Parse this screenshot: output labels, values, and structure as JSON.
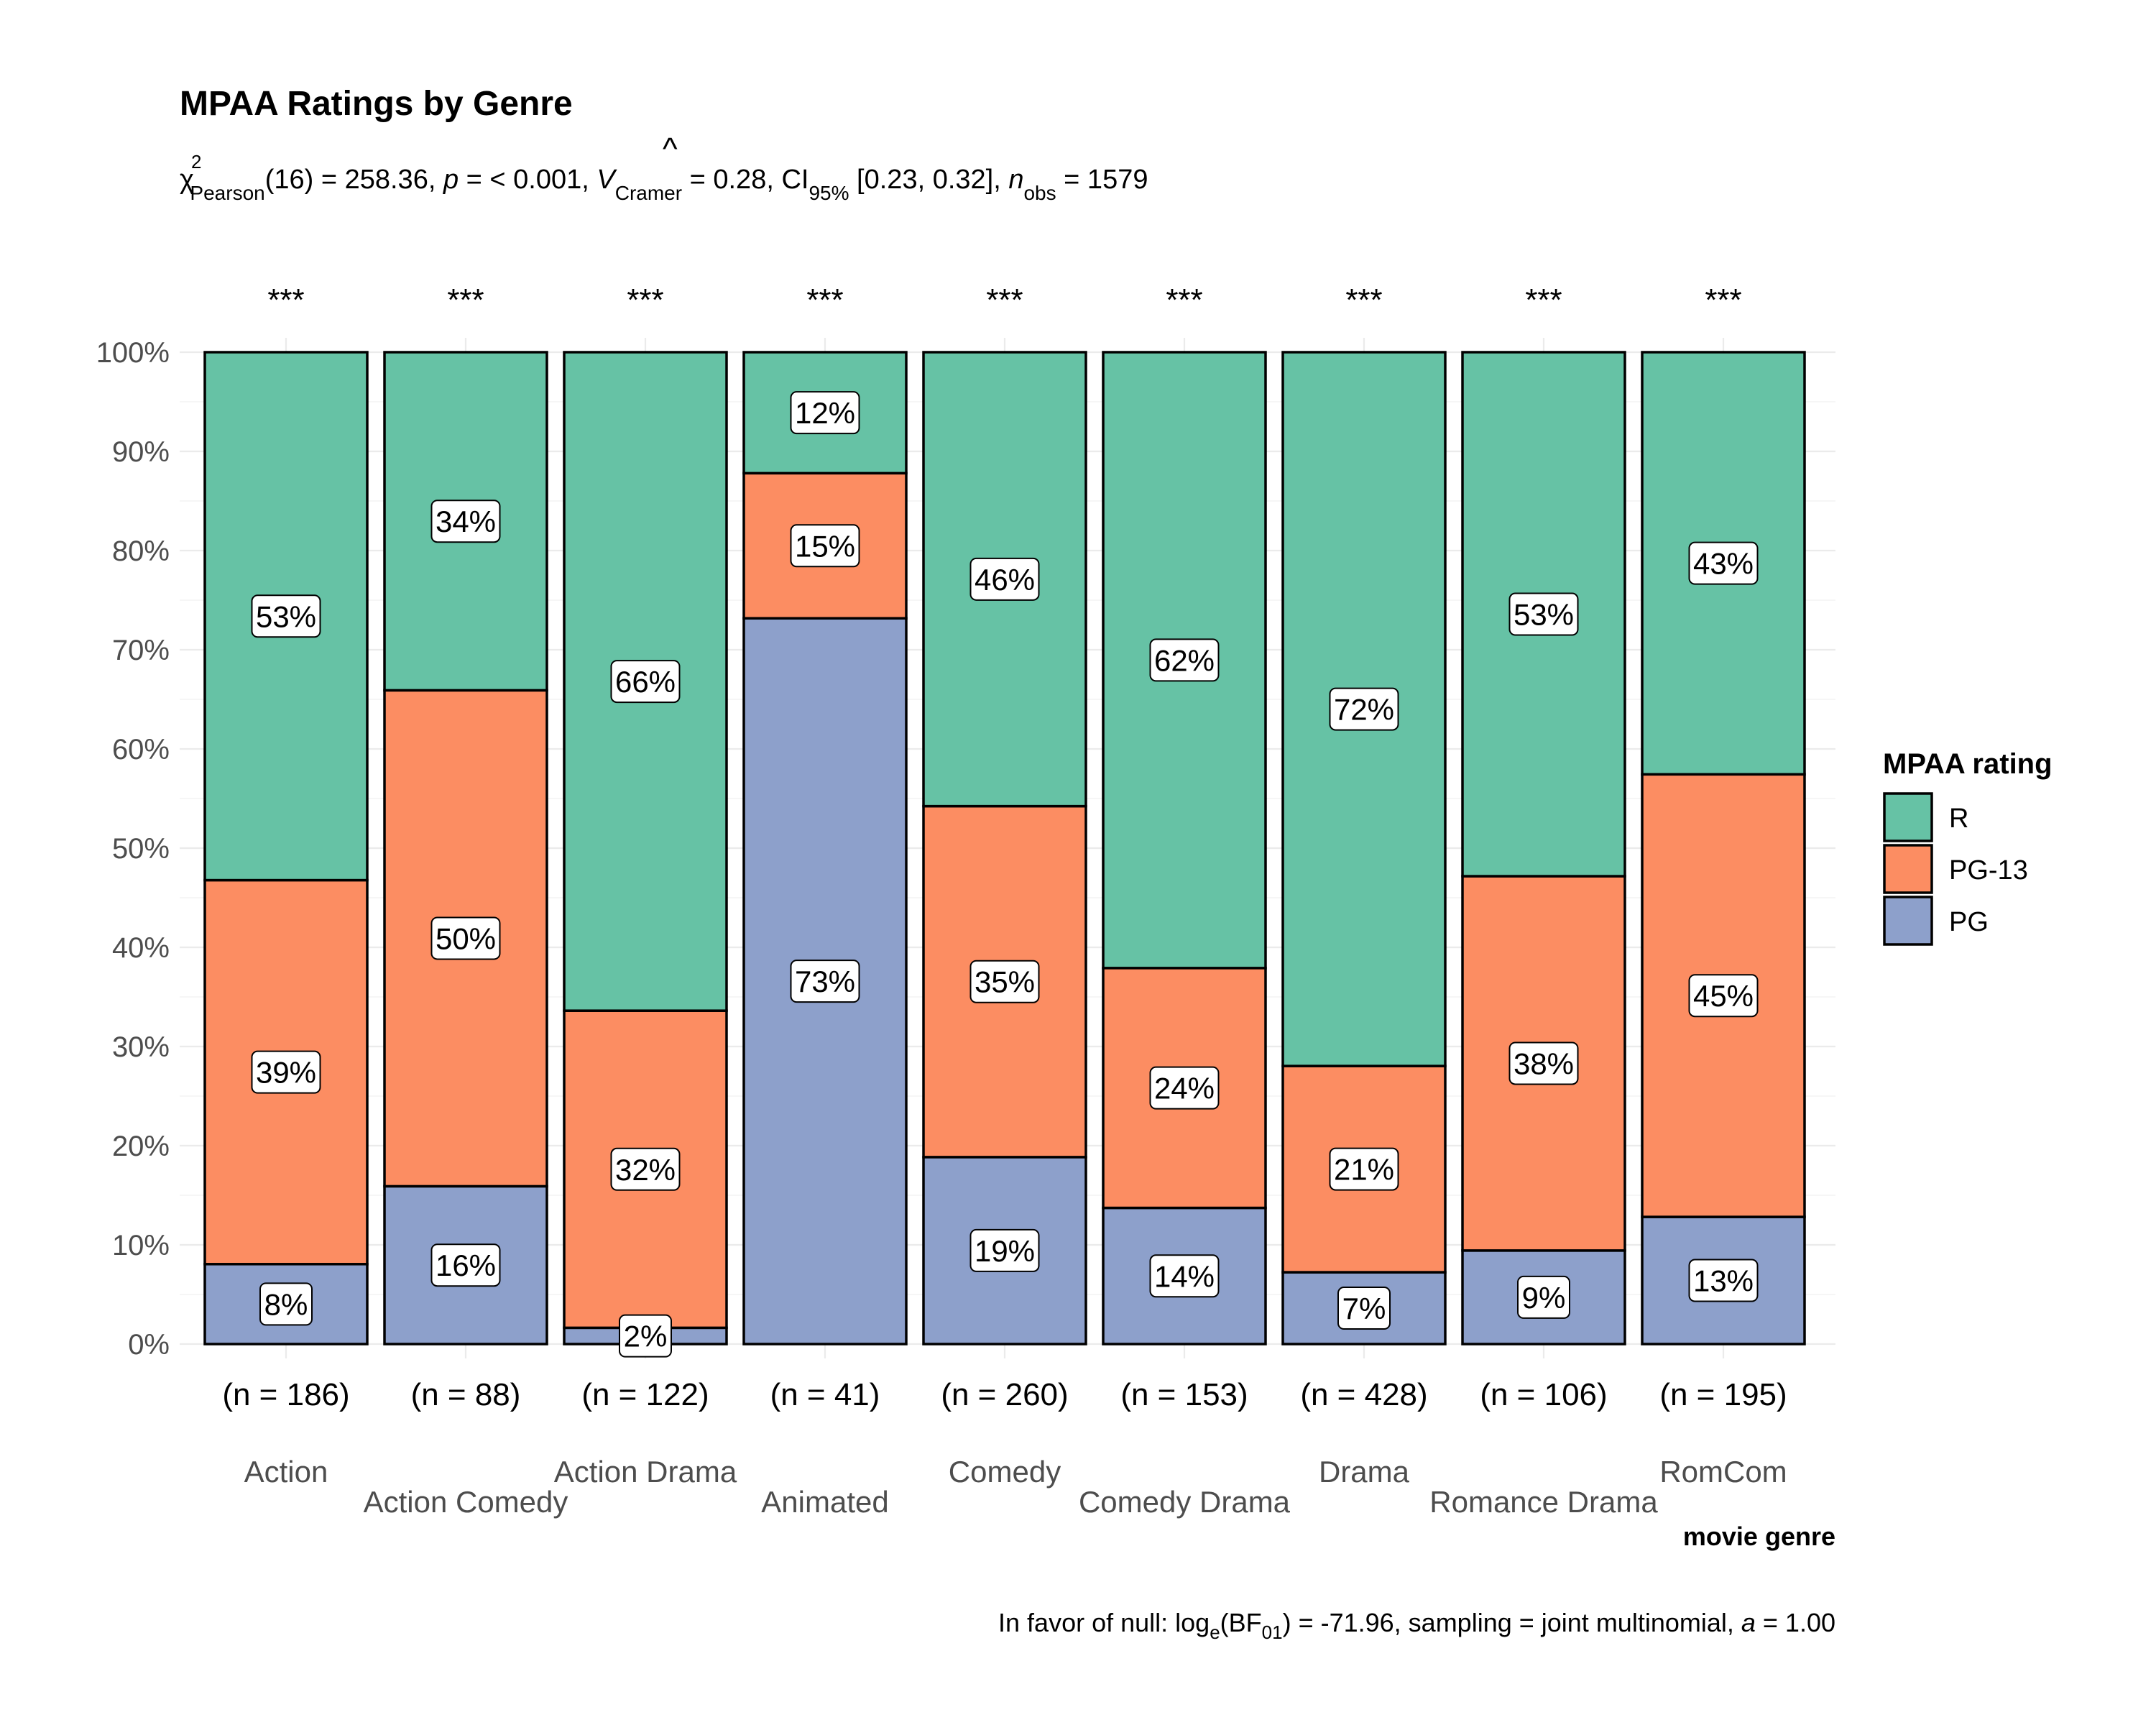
{
  "chart_data": {
    "type": "bar",
    "stacked": "percent",
    "title": "MPAA Ratings by Genre",
    "subtitle": {
      "stat_prefix": "χ",
      "stat_sup": "2",
      "stat_sub": "Pearson",
      "part1": "(16) = 258.36, ",
      "p_symbol": "p",
      "part2": " = < 0.001, ",
      "v_symbol": "V",
      "v_hat": "^",
      "v_sub": "Cramer",
      "part3": " = 0.28, CI",
      "ci_sub": "95%",
      "part4": " [0.23, 0.32], ",
      "n_symbol": "n",
      "n_sub": "obs",
      "part5": " = 1579"
    },
    "xlabel": "movie genre",
    "ylabel": "",
    "ylim": [
      0,
      100
    ],
    "yticks": [
      "0%",
      "10%",
      "20%",
      "30%",
      "40%",
      "50%",
      "60%",
      "70%",
      "80%",
      "90%",
      "100%"
    ],
    "categories": [
      "Action",
      "Action Comedy",
      "Action Drama",
      "Animated",
      "Comedy",
      "Comedy Drama",
      "Drama",
      "Romance Drama",
      "RomCom"
    ],
    "n_labels": [
      "(n = 186)",
      "(n = 88)",
      "(n = 122)",
      "(n = 41)",
      "(n = 260)",
      "(n = 153)",
      "(n = 428)",
      "(n = 106)",
      "(n = 195)"
    ],
    "significance": [
      "***",
      "***",
      "***",
      "***",
      "***",
      "***",
      "***",
      "***",
      "***"
    ],
    "series": [
      {
        "name": "PG",
        "color": "#8DA0CB",
        "values": [
          8.06,
          15.91,
          1.64,
          73.17,
          18.85,
          13.73,
          7.24,
          9.43,
          12.82
        ],
        "labels": [
          "8%",
          "16%",
          "2%",
          "73%",
          "19%",
          "14%",
          "7%",
          "9%",
          "13%"
        ]
      },
      {
        "name": "PG-13",
        "color": "#FC8D62",
        "values": [
          38.71,
          50.0,
          31.97,
          14.63,
          35.38,
          24.18,
          20.79,
          37.74,
          44.62
        ],
        "labels": [
          "39%",
          "50%",
          "32%",
          "15%",
          "35%",
          "24%",
          "21%",
          "38%",
          "45%"
        ]
      },
      {
        "name": "R",
        "color": "#66C2A5",
        "values": [
          53.23,
          34.09,
          66.39,
          12.2,
          45.77,
          62.09,
          71.96,
          52.83,
          42.56
        ],
        "labels": [
          "53%",
          "34%",
          "66%",
          "12%",
          "46%",
          "62%",
          "72%",
          "53%",
          "43%"
        ]
      }
    ],
    "legend": {
      "title": "MPAA rating",
      "order": [
        "R",
        "PG-13",
        "PG"
      ],
      "position": "right"
    },
    "caption": {
      "part1": "In favor of null: log",
      "sub1": "e",
      "part2": "(BF",
      "sub2": "01",
      "part3": ") = -71.96, sampling = joint multinomial, ",
      "a_symbol": "a",
      "part4": " = 1.00"
    }
  }
}
